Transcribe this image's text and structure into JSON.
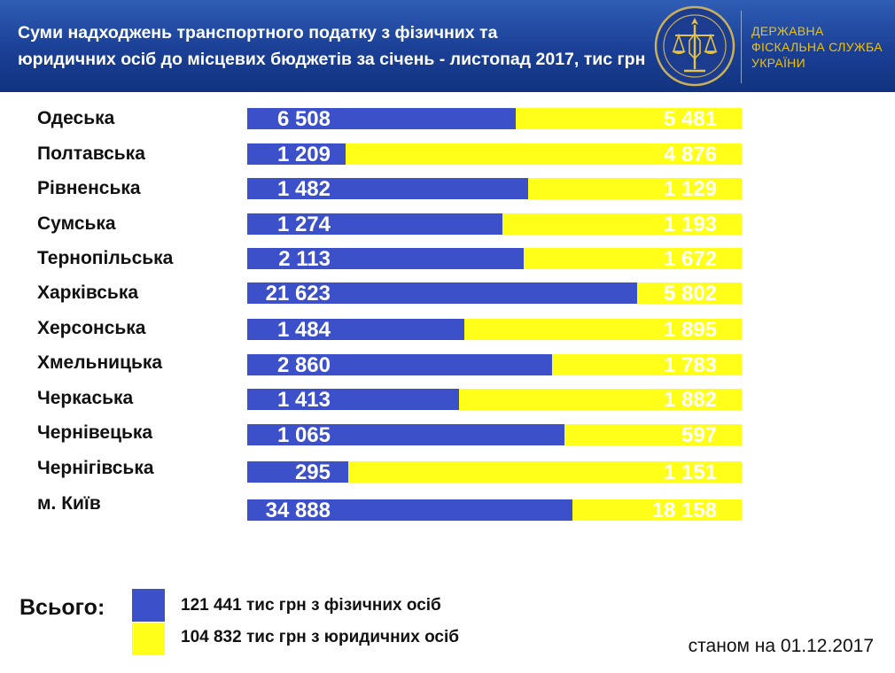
{
  "header": {
    "title": "Суми надходжень  транспортного податку з фізичних  та\nюридичних осіб до місцевих бюджетів за січень - листопад 2017, тис грн",
    "agency_lines": [
      "ДЕРЖАВНА",
      "ФІСКАЛЬНА СЛУЖБА",
      "УКРАЇНИ"
    ]
  },
  "colors": {
    "header_bg": "#1a3f95",
    "physical": "#3b50c9",
    "juridical": "#ffff1a",
    "agency_text": "#f2c200"
  },
  "chart_data": {
    "type": "bar",
    "orientation": "horizontal",
    "stacked": "100%",
    "categories": [
      "Одеська",
      "Полтавська",
      "Рівненська",
      "Сумська",
      "Тернопільська",
      "Харківська",
      "Херсонська",
      "Хмельницька",
      "Черкаська",
      "Чернівецька",
      "Чернігівська",
      "м. Київ"
    ],
    "series": [
      {
        "name": "з фізичних осіб",
        "color": "#3b50c9",
        "values": [
          6508,
          1209,
          1482,
          1274,
          2113,
          21623,
          1484,
          2860,
          1413,
          1065,
          295,
          34888
        ]
      },
      {
        "name": "з юридичних осіб",
        "color": "#ffff1a",
        "values": [
          5481,
          4876,
          1129,
          1193,
          1672,
          5802,
          1895,
          1783,
          1882,
          597,
          1151,
          18158
        ]
      }
    ],
    "value_labels_physical": [
      "6 508",
      "1 209",
      "1 482",
      "1 274",
      "2 113",
      "21 623",
      "1 484",
      "2 860",
      "1 413",
      "1 065",
      "295",
      "34 888"
    ],
    "value_labels_juridical": [
      "5 481",
      "4 876",
      "1 129",
      "1 193",
      "1 672",
      "5 802",
      "1 895",
      "1 783",
      "1 882",
      "597",
      "1 151",
      "18 158"
    ],
    "grid": false
  },
  "totals": {
    "label": "Всього:",
    "physical_text": "121 441 тис грн з фізичних осіб",
    "juridical_text": "104 832 тис грн з юридичних осіб"
  },
  "as_of": "станом на 01.12.2017"
}
